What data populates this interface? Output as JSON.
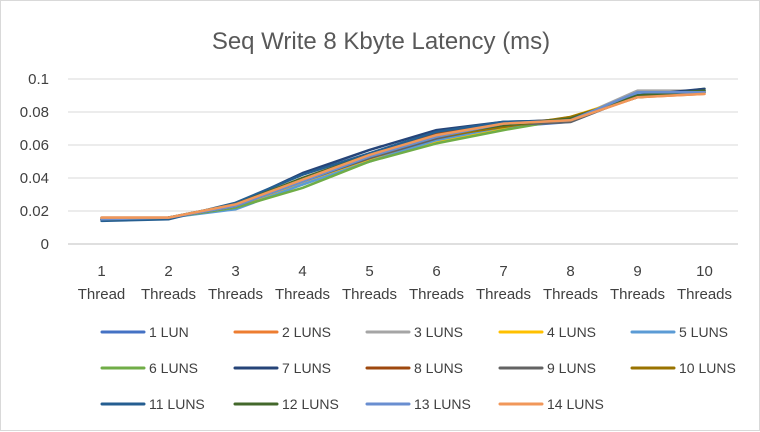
{
  "chart_data": {
    "type": "line",
    "title": "Seq Write 8 Kbyte Latency (ms)",
    "xlabel": "",
    "ylabel": "",
    "categories": [
      [
        "1",
        "Thread"
      ],
      [
        "2",
        "Threads"
      ],
      [
        "3",
        "Threads"
      ],
      [
        "4",
        "Threads"
      ],
      [
        "5",
        "Threads"
      ],
      [
        "6",
        "Threads"
      ],
      [
        "7",
        "Threads"
      ],
      [
        "8",
        "Threads"
      ],
      [
        "9",
        "Threads"
      ],
      [
        "10",
        "Threads"
      ]
    ],
    "ylim": [
      0,
      0.1
    ],
    "yticks": [
      "0",
      "0.02",
      "0.04",
      "0.06",
      "0.08",
      "0.1"
    ],
    "grid": true,
    "legend_position": "bottom",
    "series": [
      {
        "name": "1 LUN",
        "color": "#4472C4",
        "values": [
          0.015,
          0.016,
          0.022,
          0.037,
          0.05,
          0.064,
          0.071,
          0.074,
          0.09,
          0.092
        ]
      },
      {
        "name": "2 LUNS",
        "color": "#ED7D31",
        "values": [
          0.016,
          0.016,
          0.023,
          0.038,
          0.052,
          0.066,
          0.072,
          0.075,
          0.089,
          0.091
        ]
      },
      {
        "name": "3 LUNS",
        "color": "#A5A5A5",
        "values": [
          0.016,
          0.016,
          0.023,
          0.037,
          0.053,
          0.065,
          0.072,
          0.075,
          0.093,
          0.093
        ]
      },
      {
        "name": "4 LUNS",
        "color": "#FFC000",
        "values": [
          0.015,
          0.016,
          0.023,
          0.036,
          0.051,
          0.062,
          0.07,
          0.077,
          0.09,
          0.092
        ]
      },
      {
        "name": "5 LUNS",
        "color": "#5B9BD5",
        "values": [
          0.015,
          0.016,
          0.021,
          0.036,
          0.05,
          0.063,
          0.071,
          0.075,
          0.091,
          0.092
        ]
      },
      {
        "name": "6 LUNS",
        "color": "#70AD47",
        "values": [
          0.015,
          0.016,
          0.022,
          0.034,
          0.05,
          0.061,
          0.069,
          0.076,
          0.089,
          0.094
        ]
      },
      {
        "name": "7 LUNS",
        "color": "#264478",
        "values": [
          0.015,
          0.016,
          0.024,
          0.043,
          0.057,
          0.069,
          0.074,
          0.075,
          0.09,
          0.094
        ]
      },
      {
        "name": "8 LUNS",
        "color": "#9E480E",
        "values": [
          0.015,
          0.016,
          0.023,
          0.04,
          0.054,
          0.067,
          0.073,
          0.076,
          0.089,
          0.092
        ]
      },
      {
        "name": "9 LUNS",
        "color": "#636363",
        "values": [
          0.015,
          0.016,
          0.023,
          0.038,
          0.052,
          0.064,
          0.072,
          0.074,
          0.09,
          0.092
        ]
      },
      {
        "name": "10 LUNS",
        "color": "#997300",
        "values": [
          0.015,
          0.016,
          0.023,
          0.039,
          0.053,
          0.065,
          0.071,
          0.077,
          0.089,
          0.092
        ]
      },
      {
        "name": "11 LUNS",
        "color": "#255E91",
        "values": [
          0.014,
          0.015,
          0.025,
          0.042,
          0.055,
          0.068,
          0.074,
          0.075,
          0.09,
          0.093
        ]
      },
      {
        "name": "12 LUNS",
        "color": "#43682B",
        "values": [
          0.015,
          0.016,
          0.024,
          0.04,
          0.054,
          0.066,
          0.072,
          0.076,
          0.09,
          0.093
        ]
      },
      {
        "name": "13 LUNS",
        "color": "#698ED0",
        "values": [
          0.015,
          0.016,
          0.023,
          0.038,
          0.053,
          0.065,
          0.073,
          0.075,
          0.092,
          0.092
        ]
      },
      {
        "name": "14 LUNS",
        "color": "#F1975A",
        "values": [
          0.016,
          0.016,
          0.024,
          0.039,
          0.054,
          0.066,
          0.073,
          0.075,
          0.089,
          0.091
        ]
      }
    ]
  }
}
